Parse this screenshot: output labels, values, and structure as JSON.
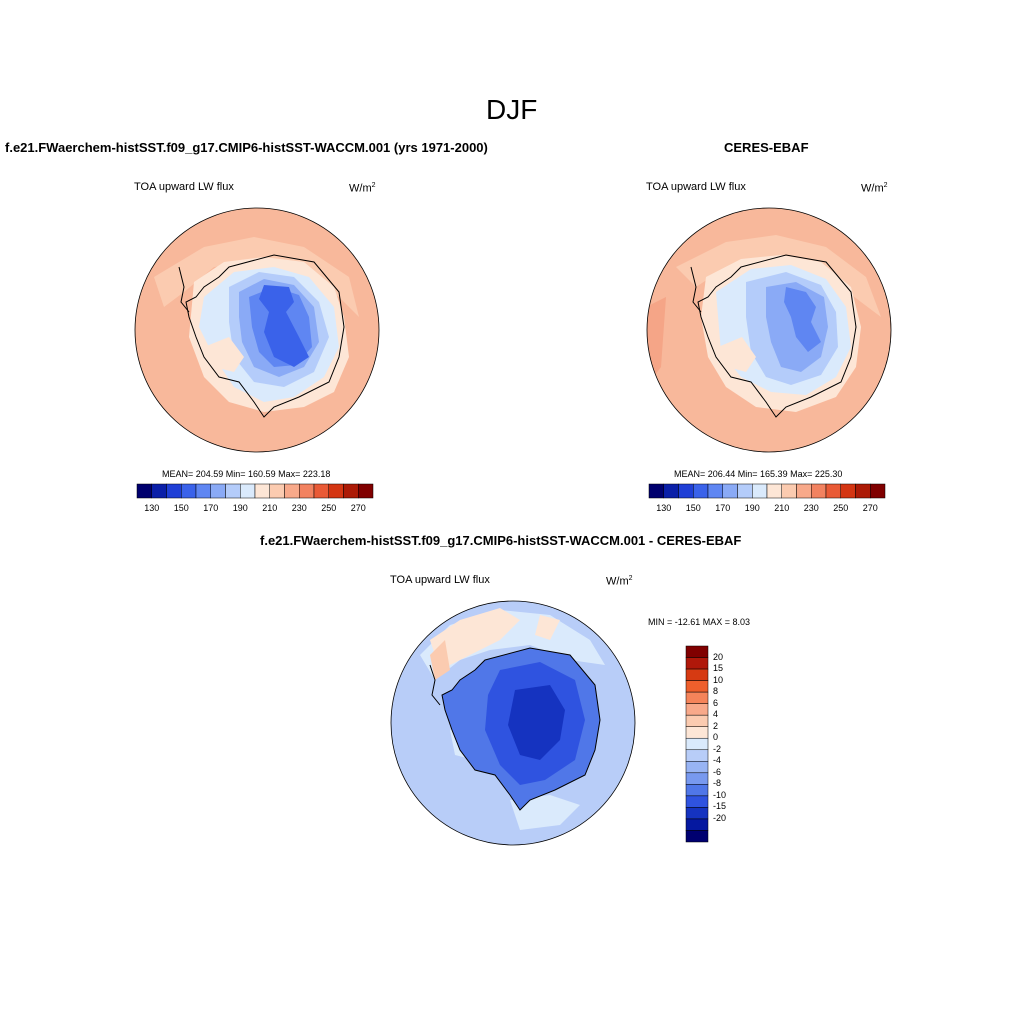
{
  "figure": {
    "season": "DJF",
    "panels": [
      {
        "id": "model",
        "title": "f.e21.FWaerchem-histSST.f09_g17.CMIP6-histSST-WACCM.001 (yrs 1971-2000)",
        "variable": "TOA upward LW flux",
        "units_base": "W/m",
        "units_exp": "2",
        "stats": "MEAN= 204.59  Min= 160.59  Max= 223.18"
      },
      {
        "id": "obs",
        "title": "CERES-EBAF",
        "variable": "TOA upward LW flux",
        "units_base": "W/m",
        "units_exp": "2",
        "stats": "MEAN= 206.44  Min= 165.39  Max= 225.30"
      },
      {
        "id": "diff",
        "title": "f.e21.FWaerchem-histSST.f09_g17.CMIP6-histSST-WACCM.001 - CERES-EBAF",
        "variable": "TOA upward LW flux",
        "units_base": "W/m",
        "units_exp": "2",
        "stats": "MIN = -12.61 MAX =   8.03"
      }
    ],
    "abs_colorbar": {
      "colors": [
        "#00006e",
        "#0a1fa8",
        "#1f3fd6",
        "#3a62ea",
        "#5f86f2",
        "#8aaaf6",
        "#b4ccfa",
        "#daeafc",
        "#fde6d6",
        "#fbcbb0",
        "#f8a98a",
        "#f28260",
        "#e95a36",
        "#d43512",
        "#ac1a06",
        "#800000"
      ],
      "tick_labels": [
        "130",
        "150",
        "170",
        "190",
        "210",
        "230",
        "250",
        "270"
      ]
    },
    "diff_colorbar": {
      "colors": [
        "#800000",
        "#b0180a",
        "#d63a12",
        "#ee5f2c",
        "#f5845a",
        "#f8a98a",
        "#fbcbb0",
        "#fde6d6",
        "#daeafc",
        "#b8cdf8",
        "#98b4f4",
        "#7899ef",
        "#5077e8",
        "#2f53e0",
        "#1533c0",
        "#0518a0",
        "#000070"
      ],
      "tick_labels": [
        "20",
        "15",
        "10",
        "8",
        "6",
        "4",
        "2",
        "0",
        "-2",
        "-4",
        "-6",
        "-8",
        "-10",
        "-15",
        "-20"
      ]
    }
  }
}
